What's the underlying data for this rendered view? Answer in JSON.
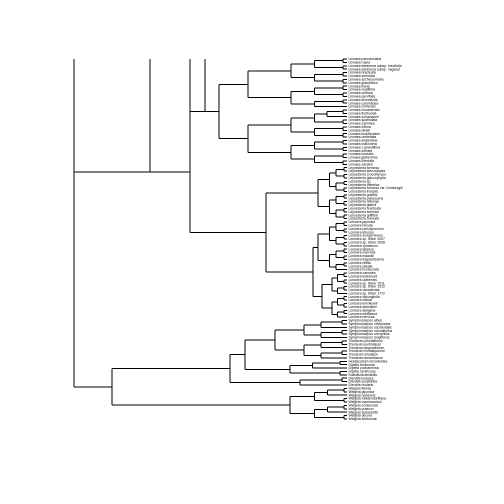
{
  "diagram": {
    "type": "phylogenetic-tree",
    "tips": [
      "Linnaea pseudoruana",
      "Linnaea ruana",
      "Linnaea tetramera subsp. brevifolia",
      "Linnaea tetramera subsp. nagasai",
      "Linnaea bracteata",
      "Linnaea serrulata",
      "Linnaea aschersoniana",
      "Linnaea grandiflora",
      "Linnaea lineta",
      "Linnaea ovalifolia",
      "Linnaea uniflora",
      "Linnaea parvifolia",
      "Linnaea diversifolia",
      "Linnaea corymbosa",
      "Linnaea chinensis",
      "Linnaea mosanensis",
      "Linnaea floribunda",
      "Linnaea schumannii",
      "Linnaea spathulata",
      "Linnaea caerulea",
      "Linnaea triflora",
      "Linnaea dielsii",
      "Linnaea buddleoides",
      "Linnaea umbellata",
      "Linnaea engleriana",
      "Linnaea macrotera",
      "Linnaea x grandiflora",
      "Linnaea serrata",
      "Linnaea borealis",
      "Linnaea glaberrima",
      "Linnaea trientalis",
      "Linnaea zanderi",
      "Leycesteria formosa",
      "Leycesteria stenosepala",
      "Leycesteria crocothyrsos",
      "Leycesteria glaucophylla",
      "Leycesteria sp.",
      "Leycesteria thibetica",
      "Leycesteria formosa var. Dumbraghi",
      "Leycesteria insignis",
      "Leycesteria gracilis",
      "Leycesteria pubescens",
      "Leycesteria oblonga",
      "Leycesteria glabra",
      "Leycesteria bracteata",
      "Leycesteria sinensis",
      "Leycesteria griffithii",
      "Leycesteria cuneata",
      "Lonicera japonica",
      "Lonicera hirsuta",
      "Lonicera periclymenum",
      "Lonicera etrusca",
      "Lonicera sempervirens",
      "Lonicera sp. Silver 2007",
      "Lonicera sp. Silver 2008",
      "Lonicera xylosteum",
      "Lonicera tatarica",
      "Lonicera morrowii",
      "Lonicera maackii",
      "Lonicera fragrantissima",
      "Lonicera nitida",
      "Lonicera pileata",
      "Lonicera involucrata",
      "Lonicera caerulea",
      "Lonicera ledebourii",
      "Lonicera utahensis",
      "Lonicera sp. Silver 1911",
      "Lonicera sp. Silver 1912",
      "Lonicera canadensis",
      "Lonicera sp. Silver 1772",
      "Lonicera oblongifolia",
      "Lonicera villosa",
      "Lonicera korolkowii",
      "Lonicera standishii",
      "Lonicera alpigena",
      "Lonicera webbiana",
      "Lonicera nervosa",
      "Symphoricarpos albus",
      "Symphoricarpos orbiculatus",
      "Symphoricarpos occidentalis",
      "Symphoricarpos rotundifolius",
      "Symphoricarpos oreophilus",
      "Symphoricarpos longiflorus",
      "Triosteum pinnatifidum",
      "Triosteum perfoliatum",
      "Triosteum angustifolium",
      "Triosteum himalayanum",
      "Triosteum sinuatum",
      "Triosteum aurantiacum",
      "Heptacodium miconioides",
      "Dipelta floribunda",
      "Dipelta yunnanensis",
      "Dipelta ventricosa",
      "Kolkwitzia amabilis",
      "Diervilla lonicera",
      "Diervilla sessilifolia",
      "Diervilla rivularis",
      "Weigela florida",
      "Weigela japonica",
      "Weigela hortensis",
      "Weigela middendorffiana",
      "Weigela maximowiczii",
      "Weigela coraeensis",
      "Weigela praecox",
      "Weigela subsessilis",
      "Weigela decora",
      "Weigela floribunda"
    ]
  }
}
